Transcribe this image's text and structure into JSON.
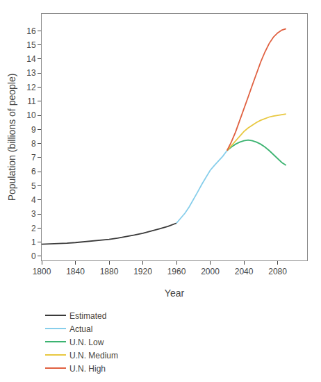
{
  "chart_data": {
    "type": "line",
    "title": "",
    "xlabel": "Year",
    "ylabel": "Population (billions of people)",
    "xlim": [
      1800,
      2115
    ],
    "ylim": [
      -0.3,
      17.2
    ],
    "xticks": [
      1800,
      1840,
      1880,
      1920,
      1960,
      2000,
      2040,
      2080
    ],
    "yticks": [
      0,
      1,
      2,
      3,
      4,
      5,
      6,
      7,
      8,
      9,
      10,
      11,
      12,
      13,
      14,
      15,
      16
    ],
    "grid": false,
    "legend": "bottom",
    "series": [
      {
        "name": "Estimated",
        "color": "#3a3a3a",
        "x": [
          1800,
          1810,
          1820,
          1830,
          1840,
          1850,
          1860,
          1870,
          1880,
          1890,
          1900,
          1910,
          1920,
          1930,
          1940,
          1950,
          1960
        ],
        "values": [
          0.85,
          0.87,
          0.9,
          0.93,
          0.97,
          1.02,
          1.08,
          1.14,
          1.2,
          1.28,
          1.38,
          1.5,
          1.63,
          1.78,
          1.95,
          2.12,
          2.35
        ]
      },
      {
        "name": "Actual",
        "color": "#87ceeb",
        "x": [
          1960,
          1965,
          1970,
          1975,
          1980,
          1985,
          1990,
          1995,
          2000,
          2005,
          2010,
          2015,
          2020
        ],
        "values": [
          2.35,
          2.7,
          3.05,
          3.5,
          4.0,
          4.55,
          5.1,
          5.6,
          6.1,
          6.45,
          6.75,
          7.1,
          7.5
        ]
      },
      {
        "name": "U.N. Low",
        "color": "#3cb371",
        "x": [
          2020,
          2025,
          2030,
          2035,
          2040,
          2045,
          2050,
          2055,
          2060,
          2065,
          2070,
          2075,
          2080,
          2085,
          2090
        ],
        "values": [
          7.5,
          7.75,
          7.95,
          8.1,
          8.2,
          8.25,
          8.2,
          8.1,
          7.95,
          7.75,
          7.5,
          7.2,
          6.9,
          6.65,
          6.45
        ]
      },
      {
        "name": "U.N. Medium",
        "color": "#e8c840",
        "x": [
          2020,
          2025,
          2030,
          2035,
          2040,
          2045,
          2050,
          2055,
          2060,
          2065,
          2070,
          2075,
          2080,
          2085,
          2090
        ],
        "values": [
          7.5,
          7.85,
          8.2,
          8.55,
          8.85,
          9.1,
          9.3,
          9.5,
          9.65,
          9.78,
          9.88,
          9.95,
          10.0,
          10.05,
          10.1
        ]
      },
      {
        "name": "U.N. High",
        "color": "#e06040",
        "x": [
          2020,
          2025,
          2030,
          2035,
          2040,
          2045,
          2050,
          2055,
          2060,
          2065,
          2070,
          2075,
          2080,
          2085,
          2090
        ],
        "values": [
          7.5,
          8.1,
          8.8,
          9.6,
          10.45,
          11.3,
          12.15,
          13.0,
          13.8,
          14.5,
          15.1,
          15.55,
          15.85,
          16.05,
          16.15
        ]
      }
    ]
  }
}
